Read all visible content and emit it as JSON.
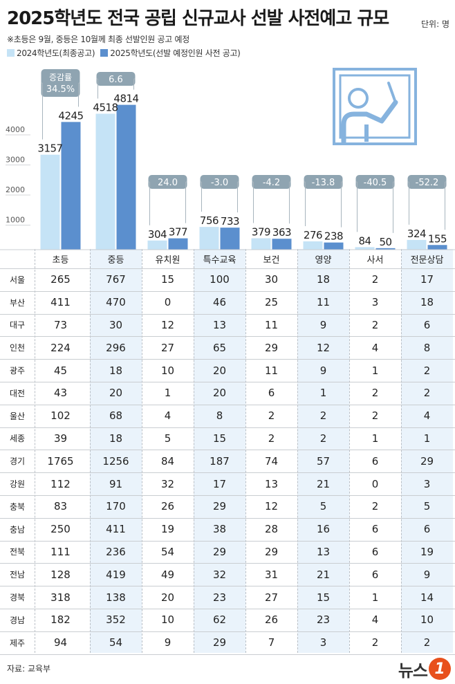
{
  "header": {
    "title": "2025학년도 전국 공립 신규교사 선발 사전예고 규모",
    "unit": "단위: 명",
    "note": "※초등은 9월, 중등은 10월께 최종 선발인원 공고 예정"
  },
  "legend": [
    {
      "label": "2024학년도(최종공고)",
      "color": "#c5e3f6"
    },
    {
      "label": "2025학년도(선발 예정인원 사전 공고)",
      "color": "#5b8fce"
    }
  ],
  "chart_data": {
    "type": "bar",
    "categories": [
      "초등",
      "중등",
      "유치원",
      "특수교육",
      "보건",
      "영양",
      "사서",
      "전문상담"
    ],
    "series": [
      {
        "name": "2024학년도(최종공고)",
        "values": [
          3157,
          4518,
          304,
          756,
          379,
          276,
          84,
          324
        ]
      },
      {
        "name": "2025학년도(선발 예정인원 사전 공고)",
        "values": [
          4245,
          4814,
          377,
          733,
          363,
          238,
          50,
          155
        ]
      }
    ],
    "change_labels": [
      "증감률 34.5%",
      "6.6",
      "24.0",
      "-3.0",
      "-4.2",
      "-13.8",
      "-40.5",
      "-52.2"
    ],
    "yticks": [
      1000,
      2000,
      3000,
      4000
    ],
    "ylim": [
      0,
      5000
    ],
    "grid": false
  },
  "table": {
    "columns": [
      "초등",
      "중등",
      "유치원",
      "특수교육",
      "보건",
      "영양",
      "사서",
      "전문상담"
    ],
    "rows": [
      {
        "region": "서울",
        "values": [
          "265",
          "767",
          "15",
          "100",
          "30",
          "18",
          "2",
          "17"
        ]
      },
      {
        "region": "부산",
        "values": [
          "411",
          "470",
          "0",
          "46",
          "25",
          "11",
          "3",
          "18"
        ]
      },
      {
        "region": "대구",
        "values": [
          "73",
          "30",
          "12",
          "13",
          "11",
          "9",
          "2",
          "6"
        ]
      },
      {
        "region": "인천",
        "values": [
          "224",
          "296",
          "27",
          "65",
          "29",
          "12",
          "4",
          "8"
        ]
      },
      {
        "region": "광주",
        "values": [
          "45",
          "18",
          "10",
          "20",
          "11",
          "9",
          "1",
          "2"
        ]
      },
      {
        "region": "대전",
        "values": [
          "43",
          "20",
          "1",
          "20",
          "6",
          "1",
          "2",
          "2"
        ]
      },
      {
        "region": "울산",
        "values": [
          "102",
          "68",
          "4",
          "8",
          "2",
          "2",
          "2",
          "4"
        ]
      },
      {
        "region": "세종",
        "values": [
          "39",
          "18",
          "5",
          "15",
          "2",
          "2",
          "1",
          "1"
        ]
      },
      {
        "region": "경기",
        "values": [
          "1765",
          "1256",
          "84",
          "187",
          "74",
          "57",
          "6",
          "29"
        ]
      },
      {
        "region": "강원",
        "values": [
          "112",
          "91",
          "32",
          "17",
          "13",
          "21",
          "0",
          "3"
        ]
      },
      {
        "region": "충북",
        "values": [
          "83",
          "170",
          "26",
          "29",
          "12",
          "5",
          "2",
          "5"
        ]
      },
      {
        "region": "충남",
        "values": [
          "250",
          "411",
          "19",
          "38",
          "28",
          "16",
          "6",
          "6"
        ]
      },
      {
        "region": "전북",
        "values": [
          "111",
          "236",
          "54",
          "29",
          "29",
          "13",
          "6",
          "19"
        ]
      },
      {
        "region": "전남",
        "values": [
          "128",
          "419",
          "49",
          "32",
          "31",
          "21",
          "6",
          "9"
        ]
      },
      {
        "region": "경북",
        "values": [
          "318",
          "138",
          "20",
          "23",
          "27",
          "15",
          "1",
          "14"
        ]
      },
      {
        "region": "경남",
        "values": [
          "182",
          "352",
          "10",
          "62",
          "26",
          "23",
          "4",
          "10"
        ]
      },
      {
        "region": "제주",
        "values": [
          "94",
          "54",
          "9",
          "29",
          "7",
          "3",
          "2",
          "2"
        ]
      }
    ]
  },
  "footer": {
    "source": "자료: 교육부",
    "logo_text": "뉴스",
    "logo_mark": "1"
  },
  "colors": {
    "bar2024": "#c5e3f6",
    "bar2025": "#5b8fce",
    "badge": "#8fa4b1",
    "stripe": "#eaf3fb",
    "icon": "#86b3de"
  }
}
